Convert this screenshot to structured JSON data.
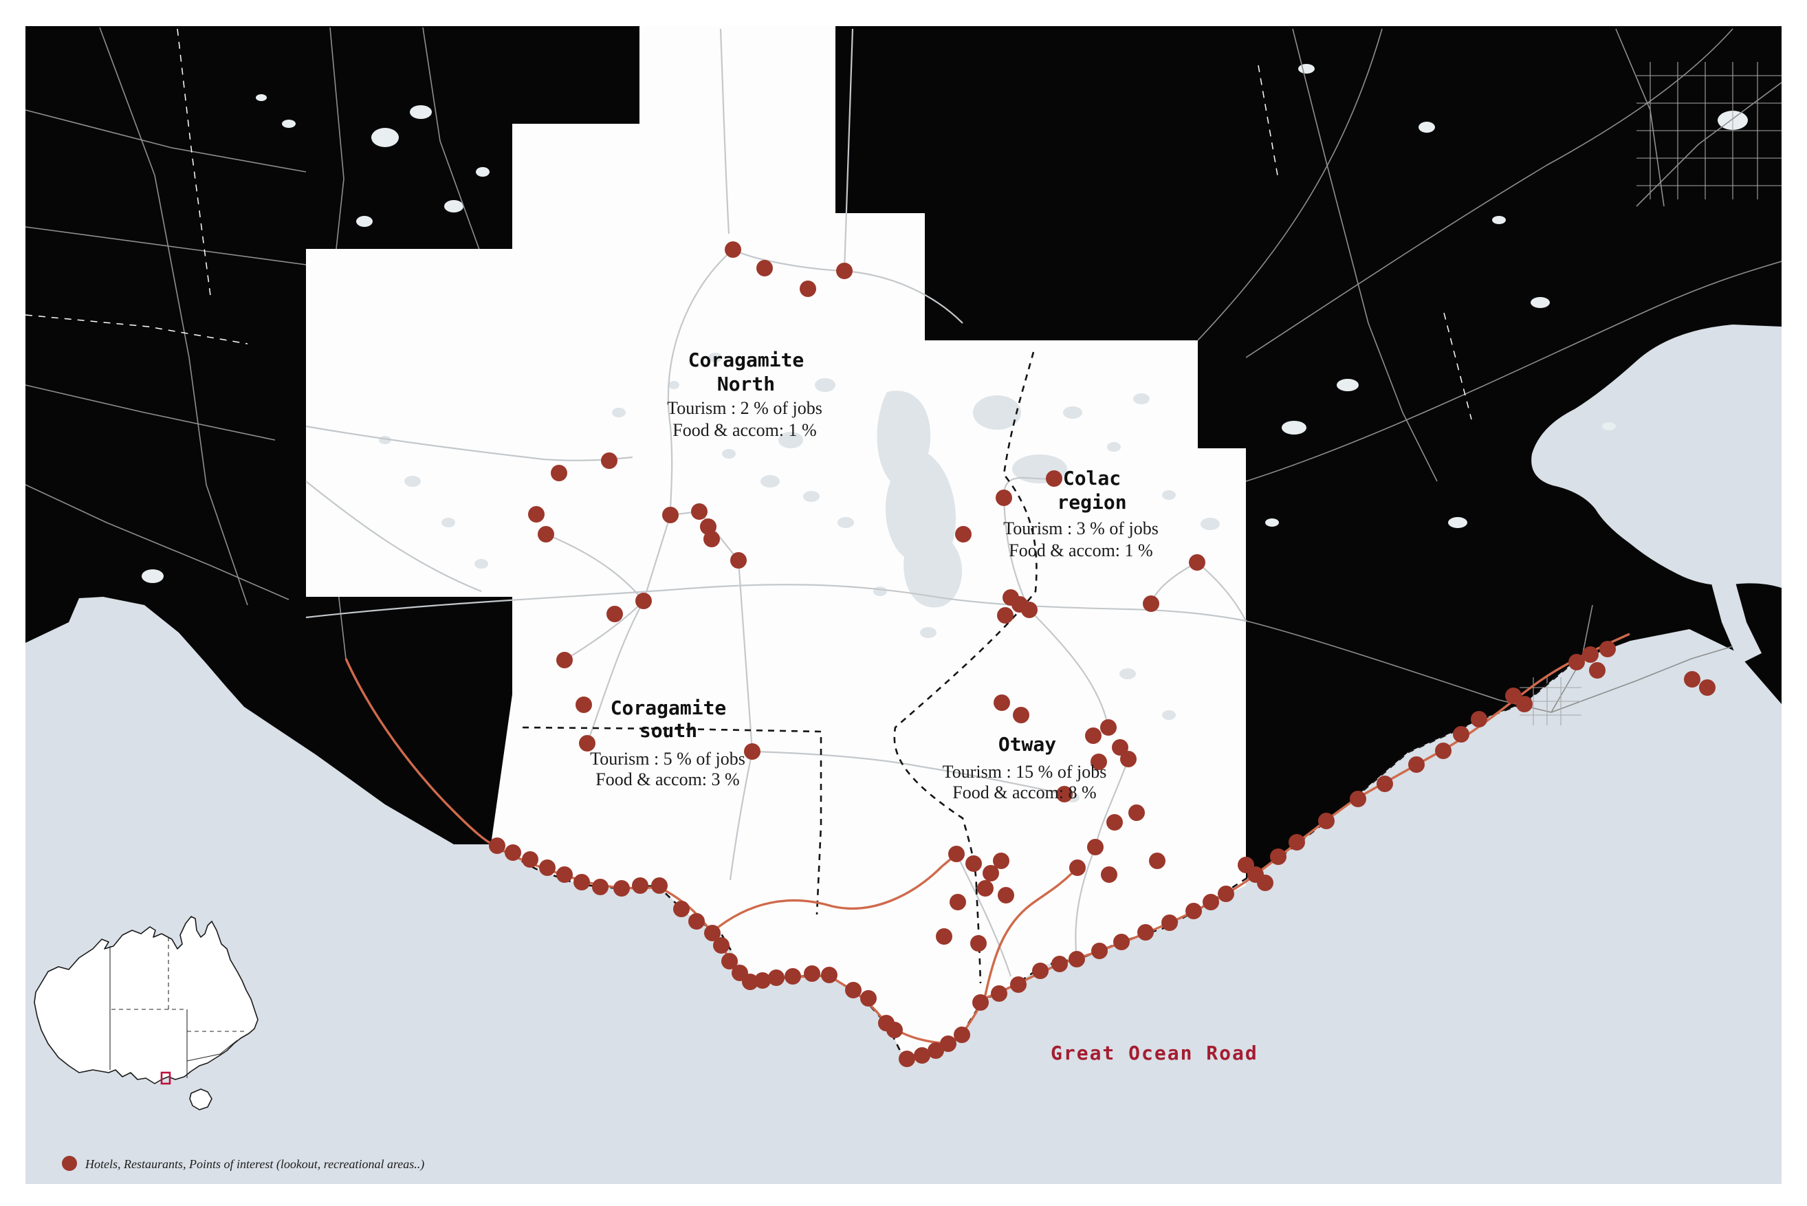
{
  "map": {
    "regions": [
      {
        "title1": "Coragamite",
        "title2": "North",
        "stat1": "Tourism : 2 % of jobs",
        "stat2": "Food & accom: 1 %"
      },
      {
        "title1": "Colac",
        "title2": "region",
        "stat1": "Tourism : 3 % of jobs",
        "stat2": "Food & accom: 1 %"
      },
      {
        "title1": "Coragamite",
        "title2": "south",
        "stat1": "Tourism : 5 % of jobs",
        "stat2": "Food & accom: 3 %"
      },
      {
        "title1": "Otway",
        "title2": "",
        "stat1": "Tourism : 15 % of jobs",
        "stat2": "Food & accom: 8 %"
      }
    ],
    "road_label": "Great Ocean Road",
    "legend": {
      "label": "Hotels, Restaurants, Points of interest (lookout, recreational areas..)"
    },
    "colors": {
      "sea": "#d9e0e7",
      "land": "#060606",
      "study_area": "#fdfdfd",
      "poi": "#9c372b",
      "great_ocean_road": "#cf6a4c",
      "road_label_color": "#a51c30",
      "inset_marker": "#c0103c"
    },
    "markers": [
      [
        1066,
        363
      ],
      [
        1112,
        390
      ],
      [
        1228,
        394
      ],
      [
        1175,
        420
      ],
      [
        886,
        670
      ],
      [
        813,
        688
      ],
      [
        780,
        748
      ],
      [
        794,
        777
      ],
      [
        975,
        749
      ],
      [
        1017,
        744
      ],
      [
        1030,
        766
      ],
      [
        1035,
        784
      ],
      [
        1074,
        815
      ],
      [
        936,
        874
      ],
      [
        894,
        893
      ],
      [
        821,
        960
      ],
      [
        849,
        1025
      ],
      [
        854,
        1081
      ],
      [
        1094,
        1093
      ],
      [
        1460,
        724
      ],
      [
        1533,
        696
      ],
      [
        1401,
        777
      ],
      [
        1741,
        818
      ],
      [
        1674,
        878
      ],
      [
        1470,
        869
      ],
      [
        1483,
        879
      ],
      [
        1497,
        887
      ],
      [
        1462,
        895
      ],
      [
        1457,
        1022
      ],
      [
        1485,
        1040
      ],
      [
        1590,
        1070
      ],
      [
        1612,
        1058
      ],
      [
        1629,
        1087
      ],
      [
        1598,
        1108
      ],
      [
        1641,
        1104
      ],
      [
        1548,
        1155
      ],
      [
        1391,
        1242
      ],
      [
        1416,
        1256
      ],
      [
        1441,
        1270
      ],
      [
        1456,
        1252
      ],
      [
        1433,
        1292
      ],
      [
        1463,
        1302
      ],
      [
        1393,
        1312
      ],
      [
        1373,
        1362
      ],
      [
        1423,
        1372
      ],
      [
        1621,
        1196
      ],
      [
        1653,
        1182
      ],
      [
        1593,
        1232
      ],
      [
        1567,
        1262
      ],
      [
        1613,
        1272
      ],
      [
        1683,
        1252
      ],
      [
        2461,
        988
      ],
      [
        2483,
        1000
      ],
      [
        2338,
        944
      ],
      [
        2313,
        952
      ],
      [
        2293,
        963
      ],
      [
        2323,
        975
      ],
      [
        2201,
        1012
      ],
      [
        2217,
        1024
      ],
      [
        2151,
        1046
      ],
      [
        2125,
        1068
      ],
      [
        2099,
        1092
      ],
      [
        2060,
        1112
      ],
      [
        2014,
        1140
      ],
      [
        1975,
        1162
      ],
      [
        1929,
        1194
      ],
      [
        1886,
        1225
      ],
      [
        1859,
        1246
      ],
      [
        1812,
        1258
      ],
      [
        1826,
        1272
      ],
      [
        1840,
        1284
      ],
      [
        1783,
        1300
      ],
      [
        1761,
        1312
      ],
      [
        1736,
        1325
      ],
      [
        1701,
        1342
      ],
      [
        1666,
        1356
      ],
      [
        1631,
        1370
      ],
      [
        1599,
        1383
      ],
      [
        1566,
        1395
      ],
      [
        1541,
        1402
      ],
      [
        1513,
        1412
      ],
      [
        1481,
        1432
      ],
      [
        1453,
        1445
      ],
      [
        1426,
        1458
      ],
      [
        1399,
        1505
      ],
      [
        1379,
        1518
      ],
      [
        1361,
        1528
      ],
      [
        1341,
        1535
      ],
      [
        1319,
        1540
      ],
      [
        1301,
        1498
      ],
      [
        1289,
        1488
      ],
      [
        1263,
        1452
      ],
      [
        1241,
        1440
      ],
      [
        1206,
        1418
      ],
      [
        1181,
        1416
      ],
      [
        1153,
        1420
      ],
      [
        1129,
        1422
      ],
      [
        1109,
        1426
      ],
      [
        1091,
        1428
      ],
      [
        1076,
        1415
      ],
      [
        1061,
        1398
      ],
      [
        1049,
        1375
      ],
      [
        1036,
        1357
      ],
      [
        1013,
        1340
      ],
      [
        991,
        1322
      ],
      [
        959,
        1288
      ],
      [
        931,
        1288
      ],
      [
        904,
        1292
      ],
      [
        873,
        1290
      ],
      [
        846,
        1283
      ],
      [
        821,
        1272
      ],
      [
        796,
        1262
      ],
      [
        771,
        1250
      ],
      [
        746,
        1240
      ],
      [
        723,
        1230
      ]
    ]
  }
}
